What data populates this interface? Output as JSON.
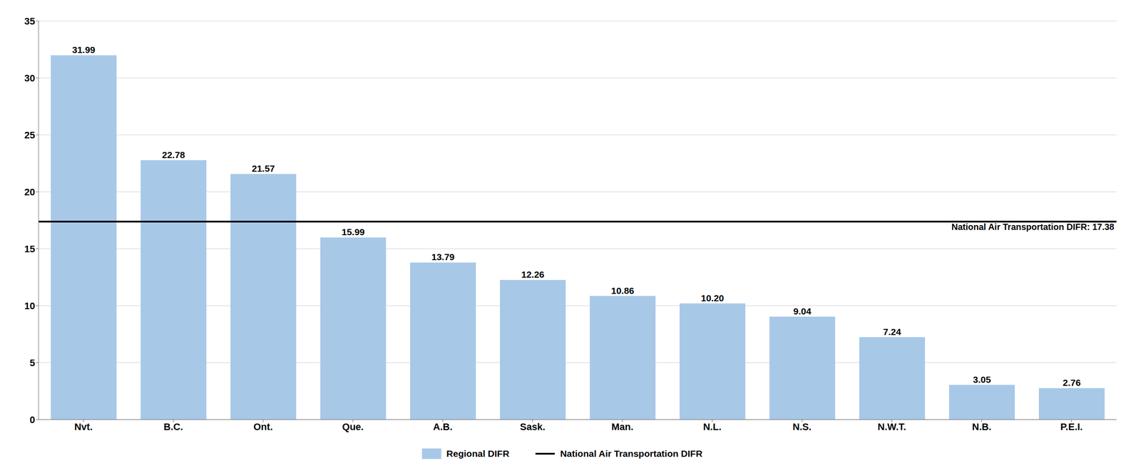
{
  "chart_data": {
    "type": "bar",
    "categories": [
      "Nvt.",
      "B.C.",
      "Ont.",
      "Que.",
      "A.B.",
      "Sask.",
      "Man.",
      "N.L.",
      "N.S.",
      "N.W.T.",
      "N.B.",
      "P.E.I."
    ],
    "series": [
      {
        "name": "Regional DIFR",
        "color": "#a8c8e8",
        "values": [
          31.99,
          22.78,
          21.57,
          15.99,
          13.79,
          12.26,
          10.86,
          10.2,
          9.04,
          7.24,
          3.05,
          2.76
        ],
        "value_labels": [
          "31.99",
          "22.78",
          "21.57",
          "15.99",
          "13.79",
          "12.26",
          "10.86",
          "10.20",
          "9.04",
          "7.24",
          "3.05",
          "2.76"
        ]
      }
    ],
    "reference_lines": [
      {
        "name": "National Air Transportation DIFR",
        "value": 17.38,
        "label": "National Air Transportation DIFR: 17.38",
        "color": "#000000"
      }
    ],
    "ylim": [
      0,
      35
    ],
    "yticks": [
      0,
      5,
      10,
      15,
      20,
      25,
      30,
      35
    ],
    "grid": true,
    "legend": "bottom",
    "data_labels": true
  }
}
